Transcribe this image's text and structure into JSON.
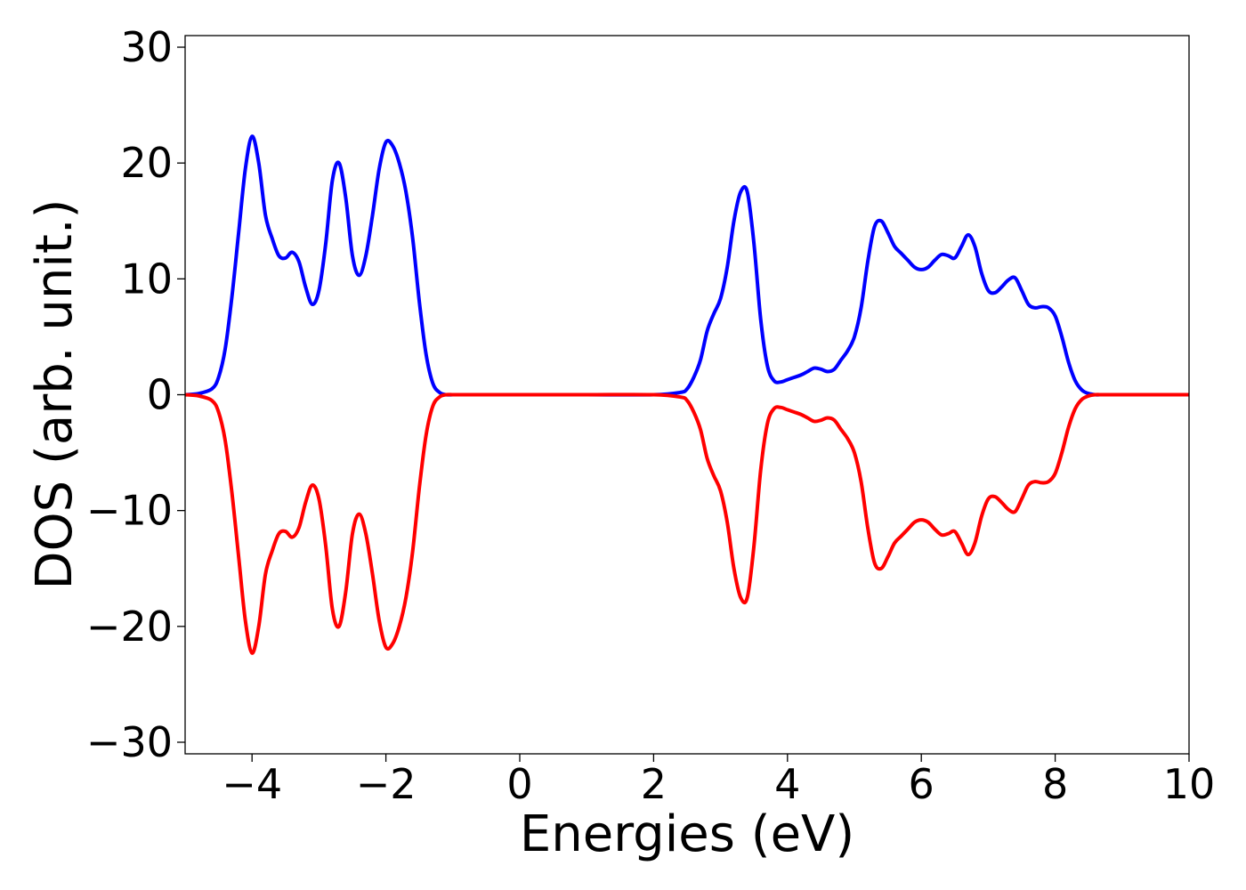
{
  "chart_data": {
    "type": "line",
    "title": "",
    "xlabel": "Energies (eV)",
    "ylabel": "DOS (arb. unit.)",
    "xlim": [
      -5,
      10
    ],
    "ylim": [
      -31,
      31
    ],
    "grid": false,
    "legend": "none",
    "x_ticks": [
      -4,
      -2,
      0,
      2,
      4,
      6,
      8,
      10
    ],
    "x_tick_labels": [
      "−4",
      "−2",
      "0",
      "2",
      "4",
      "6",
      "8",
      "10"
    ],
    "y_ticks": [
      30,
      20,
      10,
      0,
      -10,
      -20,
      -30
    ],
    "y_tick_labels": [
      "30",
      "20",
      "10",
      "0",
      "−10",
      "−20",
      "−30"
    ],
    "series": [
      {
        "color": "#0000ff",
        "x": [
          -5.0,
          -4.8,
          -4.6,
          -4.5,
          -4.4,
          -4.3,
          -4.2,
          -4.1,
          -4.0,
          -3.9,
          -3.8,
          -3.7,
          -3.6,
          -3.5,
          -3.4,
          -3.3,
          -3.2,
          -3.1,
          -3.0,
          -2.9,
          -2.8,
          -2.7,
          -2.6,
          -2.5,
          -2.4,
          -2.3,
          -2.2,
          -2.1,
          -2.0,
          -1.9,
          -1.8,
          -1.7,
          -1.6,
          -1.5,
          -1.4,
          -1.3,
          -1.2,
          -1.1,
          -1.0,
          -0.9,
          -0.8,
          -0.7,
          -0.6,
          -0.4,
          0.0,
          1.0,
          2.0,
          2.4,
          2.5,
          2.6,
          2.7,
          2.8,
          2.9,
          3.0,
          3.1,
          3.2,
          3.3,
          3.4,
          3.5,
          3.6,
          3.7,
          3.8,
          3.9,
          4.0,
          4.1,
          4.2,
          4.3,
          4.4,
          4.5,
          4.6,
          4.7,
          4.8,
          4.9,
          5.0,
          5.1,
          5.2,
          5.3,
          5.4,
          5.5,
          5.6,
          5.7,
          5.8,
          5.9,
          6.0,
          6.1,
          6.2,
          6.3,
          6.4,
          6.5,
          6.6,
          6.7,
          6.8,
          6.9,
          7.0,
          7.1,
          7.2,
          7.3,
          7.4,
          7.5,
          7.6,
          7.7,
          7.8,
          7.9,
          8.0,
          8.1,
          8.2,
          8.3,
          8.4,
          8.5,
          8.6,
          8.7,
          8.8,
          8.9,
          9.0,
          9.1,
          9.2,
          9.5,
          10.0
        ],
        "y": [
          0,
          0.1,
          0.5,
          1.5,
          4,
          8.5,
          14,
          19.5,
          22.3,
          20,
          15.5,
          13.5,
          12,
          11.8,
          12.3,
          11.5,
          9.3,
          7.8,
          9,
          13,
          18.5,
          20,
          17,
          12,
          10.3,
          12,
          15.5,
          19.5,
          21.8,
          21.5,
          20,
          17.5,
          13.5,
          8,
          3.5,
          1,
          0.2,
          0,
          0,
          0,
          0,
          0,
          0,
          0,
          0,
          0,
          0,
          0.2,
          0.5,
          1.5,
          3,
          5.5,
          7,
          8.3,
          11,
          15,
          17.5,
          17.5,
          13,
          6.5,
          2.5,
          1.2,
          1.1,
          1.3,
          1.5,
          1.7,
          2,
          2.3,
          2.2,
          2,
          2.2,
          3,
          3.8,
          5,
          7.5,
          11.5,
          14.5,
          15,
          14,
          12.8,
          12.2,
          11.6,
          11,
          10.8,
          11,
          11.6,
          12.1,
          12,
          11.8,
          12.8,
          13.8,
          12.8,
          10.5,
          9,
          8.8,
          9.3,
          9.9,
          10.1,
          9,
          7.8,
          7.5,
          7.6,
          7.5,
          6.8,
          5,
          2.8,
          1.2,
          0.4,
          0.1,
          0,
          0,
          0,
          0,
          0,
          0,
          0,
          0,
          0
        ]
      },
      {
        "color": "#ff0000",
        "x": [
          -5.0,
          -4.8,
          -4.6,
          -4.5,
          -4.4,
          -4.3,
          -4.2,
          -4.1,
          -4.0,
          -3.9,
          -3.8,
          -3.7,
          -3.6,
          -3.5,
          -3.4,
          -3.3,
          -3.2,
          -3.1,
          -3.0,
          -2.9,
          -2.8,
          -2.7,
          -2.6,
          -2.5,
          -2.4,
          -2.3,
          -2.2,
          -2.1,
          -2.0,
          -1.9,
          -1.8,
          -1.7,
          -1.6,
          -1.5,
          -1.4,
          -1.3,
          -1.2,
          -1.1,
          -1.0,
          -0.9,
          -0.8,
          -0.7,
          -0.6,
          -0.4,
          0.0,
          1.0,
          2.0,
          2.4,
          2.5,
          2.6,
          2.7,
          2.8,
          2.9,
          3.0,
          3.1,
          3.2,
          3.3,
          3.4,
          3.5,
          3.6,
          3.7,
          3.8,
          3.9,
          4.0,
          4.1,
          4.2,
          4.3,
          4.4,
          4.5,
          4.6,
          4.7,
          4.8,
          4.9,
          5.0,
          5.1,
          5.2,
          5.3,
          5.4,
          5.5,
          5.6,
          5.7,
          5.8,
          5.9,
          6.0,
          6.1,
          6.2,
          6.3,
          6.4,
          6.5,
          6.6,
          6.7,
          6.8,
          6.9,
          7.0,
          7.1,
          7.2,
          7.3,
          7.4,
          7.5,
          7.6,
          7.7,
          7.8,
          7.9,
          8.0,
          8.1,
          8.2,
          8.3,
          8.4,
          8.5,
          8.6,
          8.7,
          8.8,
          8.9,
          9.0,
          9.1,
          9.2,
          9.5,
          10.0
        ],
        "y": [
          0,
          -0.1,
          -0.5,
          -1.5,
          -4,
          -8.5,
          -14,
          -19.5,
          -22.3,
          -20,
          -15.5,
          -13.5,
          -12,
          -11.8,
          -12.3,
          -11.5,
          -9.3,
          -7.8,
          -9,
          -13,
          -18.5,
          -20,
          -17,
          -12,
          -10.3,
          -12,
          -15.5,
          -19.5,
          -21.8,
          -21.5,
          -20,
          -17.5,
          -13.5,
          -8,
          -3.5,
          -1,
          -0.2,
          0,
          0,
          0,
          0,
          0,
          0,
          0,
          0,
          0,
          0,
          -0.2,
          -0.5,
          -1.5,
          -3,
          -5.5,
          -7,
          -8.3,
          -11,
          -15,
          -17.5,
          -17.5,
          -13,
          -6.5,
          -2.5,
          -1.2,
          -1.1,
          -1.3,
          -1.5,
          -1.7,
          -2,
          -2.3,
          -2.2,
          -2,
          -2.2,
          -3,
          -3.8,
          -5,
          -7.5,
          -11.5,
          -14.5,
          -15,
          -14,
          -12.8,
          -12.2,
          -11.6,
          -11,
          -10.8,
          -11,
          -11.6,
          -12.1,
          -12,
          -11.8,
          -12.8,
          -13.8,
          -12.8,
          -10.5,
          -9,
          -8.8,
          -9.3,
          -9.9,
          -10.1,
          -9,
          -7.8,
          -7.5,
          -7.6,
          -7.5,
          -6.8,
          -5,
          -2.8,
          -1.2,
          -0.4,
          -0.1,
          0,
          0,
          0,
          0,
          0,
          0,
          0,
          0,
          0
        ]
      }
    ]
  }
}
